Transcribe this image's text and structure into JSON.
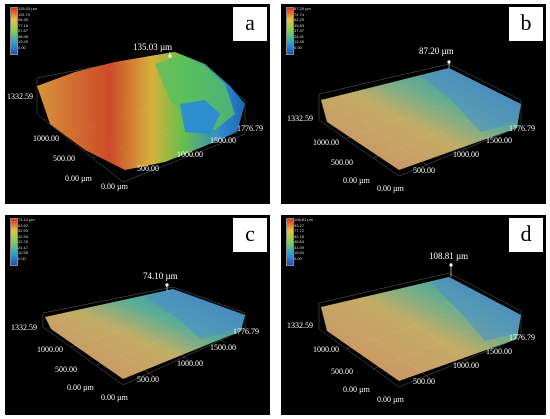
{
  "panels": [
    {
      "letter": "a",
      "peak_value": "135.03 µm",
      "colorbar": [
        "135.03 µm",
        "115.74",
        "96.45",
        "77.16",
        "57.87",
        "38.58",
        "19.29",
        "0.00"
      ],
      "axes": {
        "y_max": "1332.59",
        "y_mid": "1000.00",
        "y_low": "500.00",
        "y_zero": "0.00 µm",
        "x_zero": "0.00 µm",
        "x_500": "500.00",
        "x_1000": "1000.00",
        "x_1500": "1500.00",
        "x_max": "1776.79"
      }
    },
    {
      "letter": "b",
      "peak_value": "87.20 µm",
      "colorbar": [
        "87.20 µm",
        "74.74",
        "62.29",
        "49.83",
        "37.37",
        "24.91",
        "12.45",
        "0.00"
      ],
      "axes": {
        "y_max": "1332.59",
        "y_mid": "1000.00",
        "y_low": "500.00",
        "y_zero": "0.00 µm",
        "x_zero": "0.00 µm",
        "x_500": "500.00",
        "x_1000": "1000.00",
        "x_1500": "1500.00",
        "x_max": "1776.79"
      }
    },
    {
      "letter": "c",
      "peak_value": "74.10 µm",
      "colorbar": [
        "74.10 µm",
        "63.52",
        "52.93",
        "42.34",
        "31.76",
        "21.17",
        "10.58",
        "0.00"
      ],
      "axes": {
        "y_max": "1332.59",
        "y_mid": "1000.00",
        "y_low": "500.00",
        "y_zero": "0.00 µm",
        "x_zero": "0.00 µm",
        "x_500": "500.00",
        "x_1000": "1000.00",
        "x_1500": "1500.00",
        "x_max": "1776.79"
      }
    },
    {
      "letter": "d",
      "peak_value": "108.81 µm",
      "colorbar": [
        "108.81 µm",
        "93.27",
        "77.72",
        "62.18",
        "46.63",
        "31.09",
        "15.54",
        "0.00"
      ],
      "axes": {
        "y_max": "1332.59",
        "y_mid": "1000.00",
        "y_low": "500.00",
        "y_zero": "0.00 µm",
        "x_zero": "0.00 µm",
        "x_500": "500.00",
        "x_1000": "1000.00",
        "x_1500": "1500.00",
        "x_max": "1776.79"
      }
    }
  ],
  "colors": {
    "high": "#e0442a",
    "mid_high": "#e8b83a",
    "mid": "#8fd04a",
    "low": "#2f8fe0",
    "panel_bg": "#000000",
    "grid": "#8a8a8a"
  }
}
